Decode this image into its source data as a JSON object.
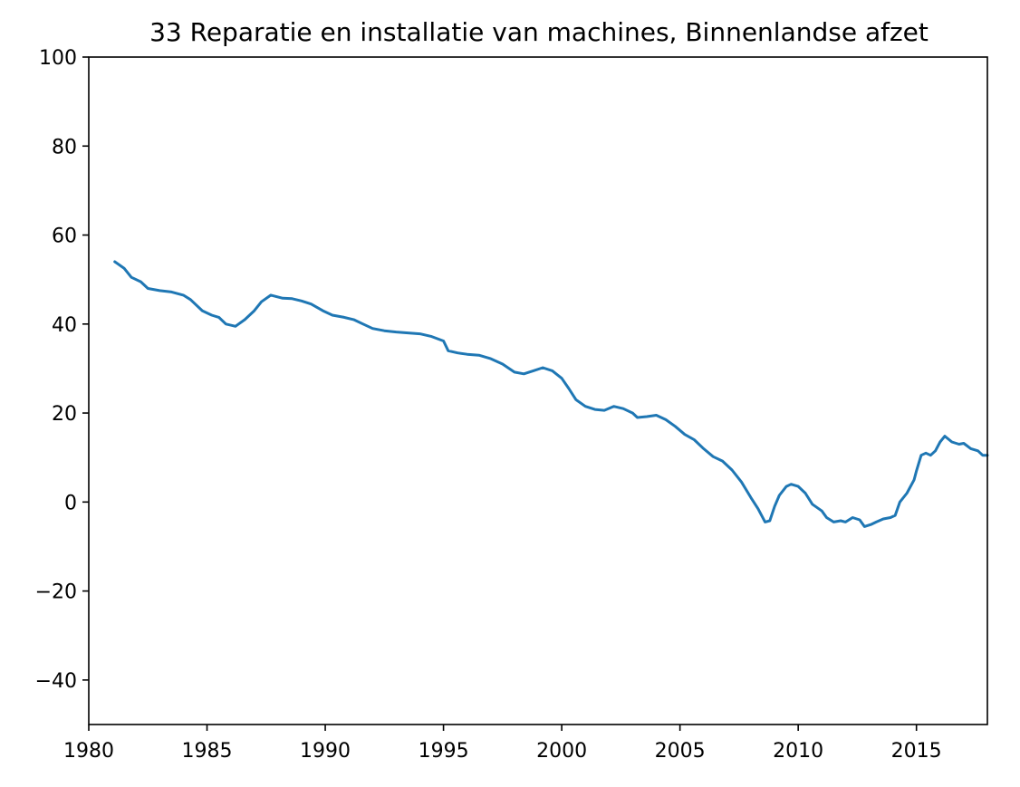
{
  "chart_data": {
    "type": "line",
    "title": "33 Reparatie en installatie van machines, Binnenlandse afzet",
    "xlabel": "",
    "ylabel": "",
    "xlim": [
      1980,
      2018
    ],
    "ylim": [
      -50,
      100
    ],
    "x_ticks": [
      1980,
      1985,
      1990,
      1995,
      2000,
      2005,
      2010,
      2015
    ],
    "x_tick_labels": [
      "1980",
      "1985",
      "1990",
      "1995",
      "2000",
      "2005",
      "2010",
      "2015"
    ],
    "y_ticks": [
      -40,
      -20,
      0,
      20,
      40,
      60,
      80,
      100
    ],
    "y_tick_labels": [
      "−40",
      "−20",
      "0",
      "20",
      "40",
      "60",
      "80",
      "100"
    ],
    "grid": false,
    "legend": "none",
    "series": [
      {
        "color": "#1f77b4",
        "x": [
          1981.1,
          1981.5,
          1981.8,
          1982.2,
          1982.5,
          1983.0,
          1983.5,
          1984.0,
          1984.3,
          1984.8,
          1985.2,
          1985.5,
          1985.8,
          1986.2,
          1986.6,
          1987.0,
          1987.3,
          1987.7,
          1988.2,
          1988.6,
          1989.0,
          1989.4,
          1989.9,
          1990.3,
          1990.8,
          1991.2,
          1991.6,
          1992.0,
          1992.5,
          1993.0,
          1993.5,
          1994.0,
          1994.5,
          1995.0,
          1995.2,
          1995.6,
          1996.0,
          1996.5,
          1997.0,
          1997.5,
          1998.0,
          1998.4,
          1998.8,
          1999.2,
          1999.6,
          2000.0,
          2000.3,
          2000.6,
          2001.0,
          2001.4,
          2001.8,
          2002.2,
          2002.6,
          2003.0,
          2003.2,
          2003.6,
          2004.0,
          2004.4,
          2004.8,
          2005.2,
          2005.6,
          2006.0,
          2006.4,
          2006.8,
          2007.2,
          2007.6,
          2008.0,
          2008.3,
          2008.6,
          2008.8,
          2009.0,
          2009.2,
          2009.5,
          2009.7,
          2010.0,
          2010.3,
          2010.6,
          2011.0,
          2011.2,
          2011.5,
          2011.8,
          2012.0,
          2012.3,
          2012.6,
          2012.8,
          2013.1,
          2013.3,
          2013.6,
          2013.9,
          2014.1,
          2014.3,
          2014.6,
          2014.9,
          2015.0,
          2015.2,
          2015.4,
          2015.6,
          2015.8,
          2016.0,
          2016.2,
          2016.5,
          2016.8,
          2017.0,
          2017.3,
          2017.6,
          2017.8,
          2018.0
        ],
        "y": [
          54.0,
          52.5,
          50.5,
          49.5,
          48.0,
          47.5,
          47.2,
          46.5,
          45.5,
          43.0,
          42.0,
          41.5,
          40.0,
          39.5,
          41.0,
          43.0,
          45.0,
          46.5,
          45.8,
          45.7,
          45.2,
          44.5,
          43.0,
          42.0,
          41.5,
          41.0,
          40.0,
          39.0,
          38.5,
          38.2,
          38.0,
          37.8,
          37.2,
          36.2,
          34.0,
          33.5,
          33.2,
          33.0,
          32.2,
          31.0,
          29.2,
          28.8,
          29.5,
          30.2,
          29.5,
          27.8,
          25.5,
          23.0,
          21.5,
          20.8,
          20.6,
          21.5,
          21.0,
          20.0,
          19.0,
          19.2,
          19.5,
          18.5,
          17.0,
          15.2,
          14.0,
          12.0,
          10.2,
          9.2,
          7.2,
          4.5,
          1.0,
          -1.5,
          -4.5,
          -4.2,
          -1.0,
          1.5,
          3.5,
          4.0,
          3.5,
          2.0,
          -0.5,
          -2.0,
          -3.5,
          -4.5,
          -4.2,
          -4.5,
          -3.5,
          -4.0,
          -5.5,
          -5.0,
          -4.5,
          -3.8,
          -3.5,
          -3.0,
          0.0,
          2.0,
          5.0,
          7.0,
          10.5,
          11.0,
          10.5,
          11.5,
          13.5,
          14.8,
          13.5,
          13.0,
          13.2,
          12.0,
          11.5,
          10.5,
          10.5
        ]
      }
    ]
  }
}
